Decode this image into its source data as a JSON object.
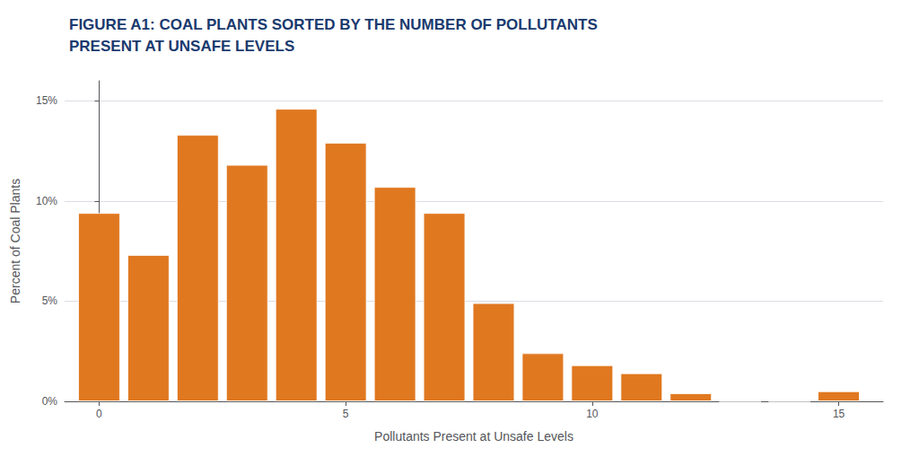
{
  "chart_data": {
    "type": "bar",
    "title": "FIGURE A1: COAL PLANTS SORTED BY THE NUMBER OF POLLUTANTS\nPRESENT AT UNSAFE LEVELS",
    "title_color": "#1a3a6e",
    "xlabel": "Pollutants Present at Unsafe Levels",
    "ylabel": "Percent of Coal Plants",
    "x": [
      0,
      1,
      2,
      3,
      4,
      5,
      6,
      7,
      8,
      9,
      10,
      11,
      12,
      13,
      14,
      15
    ],
    "values": [
      9.4,
      7.3,
      13.3,
      11.8,
      14.6,
      12.9,
      10.7,
      9.4,
      4.9,
      2.4,
      1.8,
      1.4,
      0.4,
      0.0,
      0.0,
      0.5
    ],
    "color": "#E07820",
    "xlim": [
      -0.7,
      15.9
    ],
    "xticks": [
      0,
      5,
      10,
      15
    ],
    "ylim": [
      0,
      16
    ],
    "yticks": [
      {
        "value": 0,
        "label": "0%"
      },
      {
        "value": 5,
        "label": "5%"
      },
      {
        "value": 10,
        "label": "10%"
      },
      {
        "value": 15,
        "label": "15%"
      }
    ],
    "grid": true
  }
}
